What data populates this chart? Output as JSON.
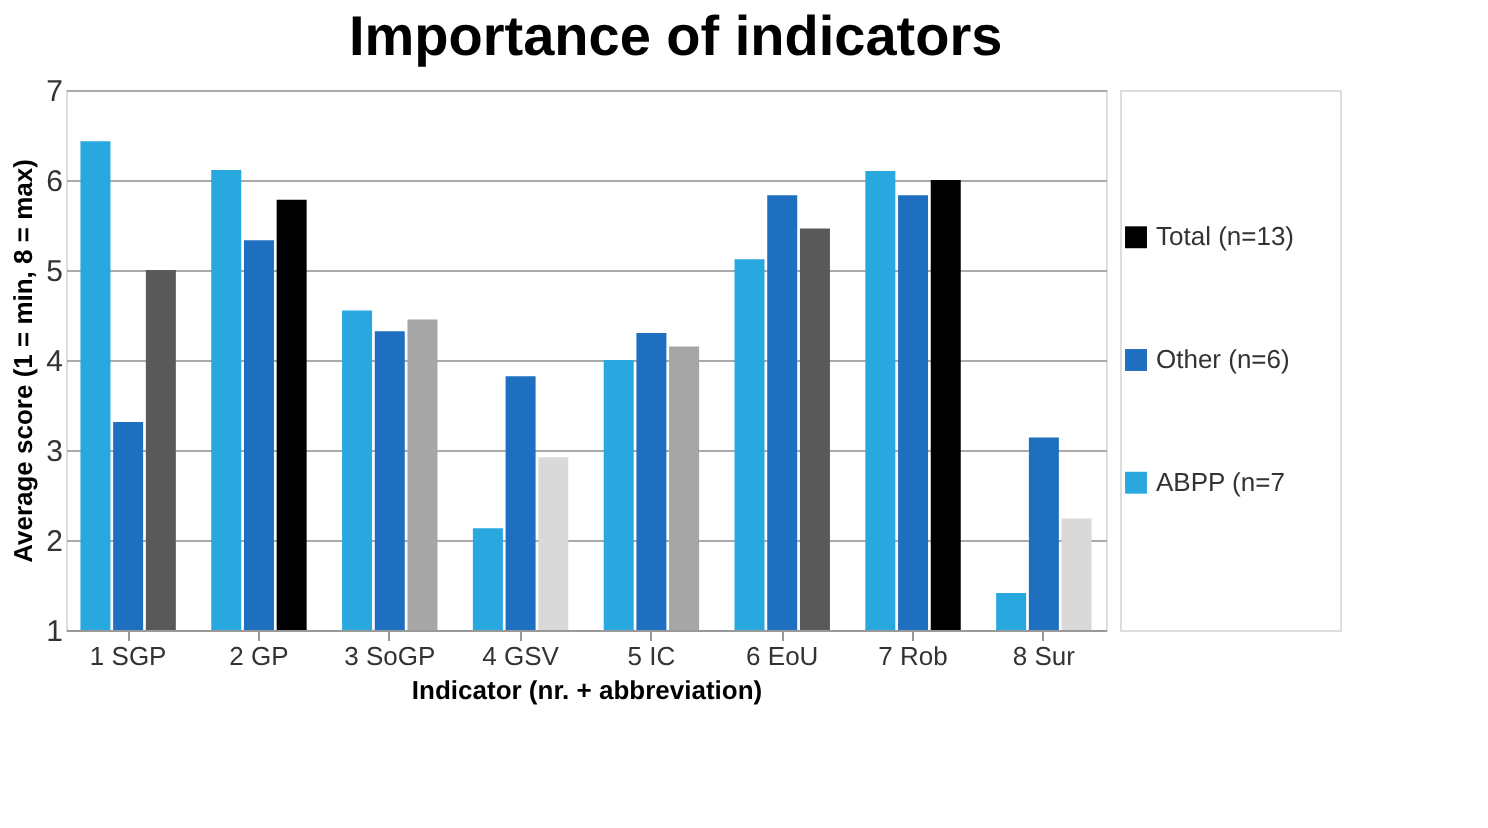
{
  "chart_data": {
    "type": "bar",
    "title": "Importance of indicators",
    "xlabel": "Indicator (nr. + abbreviation)",
    "ylabel": "Average score (1 = min, 8 = max)",
    "categories": [
      "1 SGP",
      "2 GP",
      "3 SoGP",
      "4 GSV",
      "5 IC",
      "6 EoU",
      "7 Rob",
      "8 Sur"
    ],
    "series": [
      {
        "name": "ABPP (n=7",
        "color": "#29a8e0",
        "values": [
          6.43,
          6.11,
          4.55,
          2.13,
          4.0,
          5.12,
          6.1,
          1.41
        ]
      },
      {
        "name": "Other (n=6)",
        "color": "#1f6fc0",
        "values": [
          3.31,
          5.33,
          4.32,
          3.82,
          4.3,
          5.83,
          5.83,
          3.14
        ]
      },
      {
        "name": "Total (n=13)",
        "color": "#000000",
        "colors": [
          "#595959",
          "#000000",
          "#a6a6a6",
          "#d9d9d9",
          "#a6a6a6",
          "#595959",
          "#000000",
          "#d9d9d9"
        ],
        "values": [
          5.0,
          5.78,
          4.45,
          2.92,
          4.15,
          5.46,
          6.0,
          2.24
        ]
      }
    ],
    "ylim": [
      1,
      7
    ],
    "yticks": [
      1,
      2,
      3,
      4,
      5,
      6,
      7
    ],
    "grid": "y",
    "legend": "right"
  }
}
